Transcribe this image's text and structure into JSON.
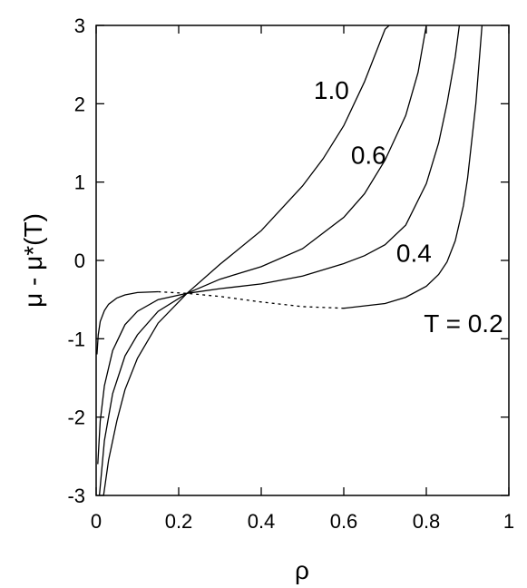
{
  "chart_data": {
    "type": "line",
    "title": "",
    "xlabel": "ρ",
    "ylabel": "μ - μ*(T)",
    "xlim": [
      0,
      1
    ],
    "ylim": [
      -3,
      3
    ],
    "xticks": [
      0,
      0.2,
      0.4,
      0.6,
      0.8,
      1
    ],
    "xtick_labels": [
      "0",
      "0.2",
      "0.4",
      "0.6",
      "0.8",
      "1"
    ],
    "yticks": [
      -3,
      -2,
      -1,
      0,
      1,
      2,
      3
    ],
    "ytick_labels": [
      "-3",
      "-2",
      "-1",
      "0",
      "1",
      "2",
      "3"
    ],
    "grid": false,
    "line_color": "#000000",
    "series": [
      {
        "name": "T = 0.2",
        "points": [
          [
            0.002,
            -1.2
          ],
          [
            0.005,
            -0.95
          ],
          [
            0.01,
            -0.78
          ],
          [
            0.02,
            -0.64
          ],
          [
            0.03,
            -0.56
          ],
          [
            0.05,
            -0.48
          ],
          [
            0.07,
            -0.44
          ],
          [
            0.1,
            -0.41
          ],
          [
            0.15,
            -0.4
          ],
          [
            0.22,
            -0.42
          ],
          [
            0.3,
            -0.46
          ],
          [
            0.4,
            -0.53
          ],
          [
            0.5,
            -0.59
          ],
          [
            0.6,
            -0.61
          ],
          [
            0.7,
            -0.55
          ],
          [
            0.75,
            -0.47
          ],
          [
            0.8,
            -0.33
          ],
          [
            0.83,
            -0.18
          ],
          [
            0.85,
            -0.02
          ],
          [
            0.87,
            0.25
          ],
          [
            0.89,
            0.7
          ],
          [
            0.9,
            1.05
          ],
          [
            0.92,
            2.0
          ],
          [
            0.935,
            3.0
          ]
        ],
        "dashed_range": [
          0.15,
          0.6
        ]
      },
      {
        "name": "0.4",
        "points": [
          [
            0.004,
            -2.6
          ],
          [
            0.01,
            -2.05
          ],
          [
            0.02,
            -1.6
          ],
          [
            0.04,
            -1.15
          ],
          [
            0.07,
            -0.82
          ],
          [
            0.1,
            -0.65
          ],
          [
            0.15,
            -0.5
          ],
          [
            0.22,
            -0.42
          ],
          [
            0.3,
            -0.36
          ],
          [
            0.4,
            -0.3
          ],
          [
            0.5,
            -0.2
          ],
          [
            0.6,
            -0.04
          ],
          [
            0.65,
            0.06
          ],
          [
            0.7,
            0.2
          ],
          [
            0.75,
            0.45
          ],
          [
            0.8,
            0.98
          ],
          [
            0.83,
            1.5
          ],
          [
            0.85,
            2.0
          ],
          [
            0.87,
            2.6
          ],
          [
            0.88,
            3.0
          ]
        ]
      },
      {
        "name": "0.6",
        "points": [
          [
            0.008,
            -3.0
          ],
          [
            0.02,
            -2.3
          ],
          [
            0.04,
            -1.7
          ],
          [
            0.07,
            -1.22
          ],
          [
            0.1,
            -0.95
          ],
          [
            0.15,
            -0.65
          ],
          [
            0.22,
            -0.42
          ],
          [
            0.3,
            -0.24
          ],
          [
            0.4,
            -0.08
          ],
          [
            0.5,
            0.15
          ],
          [
            0.6,
            0.55
          ],
          [
            0.65,
            0.85
          ],
          [
            0.7,
            1.28
          ],
          [
            0.75,
            1.85
          ],
          [
            0.78,
            2.4
          ],
          [
            0.8,
            3.0
          ]
        ]
      },
      {
        "name": "1.0",
        "points": [
          [
            0.018,
            -3.0
          ],
          [
            0.03,
            -2.55
          ],
          [
            0.05,
            -2.05
          ],
          [
            0.07,
            -1.65
          ],
          [
            0.1,
            -1.25
          ],
          [
            0.15,
            -0.8
          ],
          [
            0.22,
            -0.42
          ],
          [
            0.3,
            -0.05
          ],
          [
            0.4,
            0.38
          ],
          [
            0.5,
            0.95
          ],
          [
            0.55,
            1.3
          ],
          [
            0.6,
            1.72
          ],
          [
            0.65,
            2.28
          ],
          [
            0.7,
            2.95
          ],
          [
            0.71,
            3.0
          ]
        ]
      }
    ],
    "annotations": [
      {
        "text": "1.0",
        "x": 0.57,
        "y": 2.18
      },
      {
        "text": "0.6",
        "x": 0.66,
        "y": 1.35
      },
      {
        "text": "0.4",
        "x": 0.77,
        "y": 0.1
      },
      {
        "text": "T = 0.2",
        "x": 0.89,
        "y": -0.8
      }
    ]
  }
}
